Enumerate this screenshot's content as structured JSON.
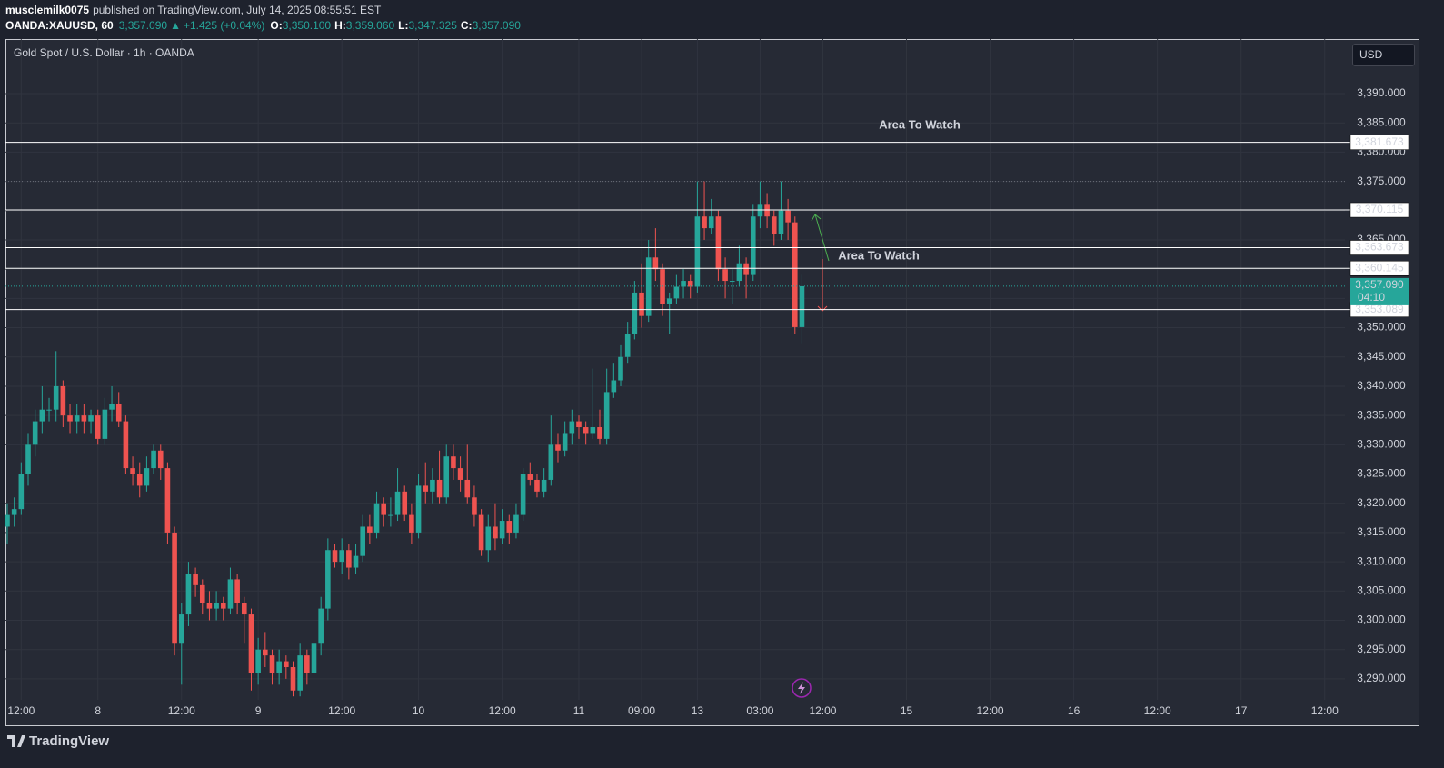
{
  "header": {
    "author": "musclemilk0075",
    "published": "published on TradingView.com, July 14, 2025 08:55:51 EST",
    "symbol": "OANDA:XAUUSD, 60",
    "price": "3,357.090",
    "change_arrow": "▲",
    "change": "+1.425 (+0.04%)",
    "o_label": "O:",
    "o": "3,350.100",
    "h_label": "H:",
    "h": "3,359.060",
    "l_label": "L:",
    "l": "3,347.325",
    "c_label": "C:",
    "c": "3,357.090"
  },
  "chart_data": {
    "type": "candlestick",
    "title": "Gold Spot / U.S. Dollar · 1h · OANDA",
    "currency": "USD",
    "up_color": "#26a69a",
    "down_color": "#ef5350",
    "grid": true,
    "xlim": [
      -0.26,
      191.9
    ],
    "xticks": [
      {
        "value": 2,
        "label": "12:00"
      },
      {
        "value": 13,
        "label": "8"
      },
      {
        "value": 25,
        "label": "12:00"
      },
      {
        "value": 36,
        "label": "9"
      },
      {
        "value": 48,
        "label": "12:00"
      },
      {
        "value": 59,
        "label": "10"
      },
      {
        "value": 71,
        "label": "12:00"
      },
      {
        "value": 82,
        "label": "11"
      },
      {
        "value": 91,
        "label": "09:00"
      },
      {
        "value": 99,
        "label": "13"
      },
      {
        "value": 108,
        "label": "03:00"
      },
      {
        "value": 117,
        "label": "12:00"
      },
      {
        "value": 129,
        "label": "15"
      },
      {
        "value": 141,
        "label": "12:00"
      },
      {
        "value": 153,
        "label": "16"
      },
      {
        "value": 165,
        "label": "12:00"
      },
      {
        "value": 177,
        "label": "17"
      },
      {
        "value": 189,
        "label": "12:00"
      }
    ],
    "ylim": [
      3286.41,
      3399.32
    ],
    "yticks": [
      {
        "value": 3290,
        "label": "3,290.000"
      },
      {
        "value": 3295,
        "label": "3,295.000"
      },
      {
        "value": 3300,
        "label": "3,300.000"
      },
      {
        "value": 3305,
        "label": "3,305.000"
      },
      {
        "value": 3310,
        "label": "3,310.000"
      },
      {
        "value": 3315,
        "label": "3,315.000"
      },
      {
        "value": 3320,
        "label": "3,320.000"
      },
      {
        "value": 3325,
        "label": "3,325.000"
      },
      {
        "value": 3330,
        "label": "3,330.000"
      },
      {
        "value": 3335,
        "label": "3,335.000"
      },
      {
        "value": 3340,
        "label": "3,340.000"
      },
      {
        "value": 3345,
        "label": "3,345.000"
      },
      {
        "value": 3350,
        "label": "3,350.000"
      },
      {
        "value": 3355,
        "label": "3,355.000"
      },
      {
        "value": 3360,
        "label": "3,360.000"
      },
      {
        "value": 3365,
        "label": "3,365.000"
      },
      {
        "value": 3370,
        "label": "3,370.000"
      },
      {
        "value": 3375,
        "label": "3,375.000"
      },
      {
        "value": 3380,
        "label": "3,380.000"
      },
      {
        "value": 3385,
        "label": "3,385.000"
      },
      {
        "value": 3390,
        "label": "3,390.000"
      }
    ],
    "open": [
      3316,
      3318,
      3319,
      3325,
      3330,
      3334,
      3336,
      3336,
      3340,
      3335,
      3334,
      3335,
      3334,
      3335,
      3331,
      3336,
      3337,
      3334,
      3326,
      3325,
      3323,
      3326,
      3329,
      3326,
      3315,
      3296,
      3301,
      3308,
      3306,
      3303,
      3302,
      3303,
      3302,
      3307,
      3303,
      3301,
      3291,
      3295,
      3294,
      3291,
      3293,
      3292,
      3288,
      3294,
      3291,
      3296,
      3302,
      3312,
      3310,
      3312,
      3309,
      3311,
      3316,
      3315,
      3320,
      3318,
      3318,
      3322,
      3318,
      3315,
      3323,
      3322,
      3324,
      3321,
      3328,
      3326,
      3324,
      3321,
      3318,
      3312,
      3316,
      3314,
      3317,
      3315,
      3318,
      3325,
      3324,
      3322,
      3324,
      3330,
      3329,
      3332,
      3334,
      3333,
      3332,
      3333,
      3331,
      3339,
      3341,
      3345,
      3349,
      3356,
      3352,
      3362,
      3360,
      3354,
      3355,
      3357,
      3358,
      3357,
      3369,
      3367,
      3369,
      3360,
      3358,
      3358,
      3361,
      3359,
      3369,
      3371,
      3369,
      3366,
      3370,
      3368,
      3350.1
    ],
    "high": [
      3320,
      3321,
      3327,
      3332,
      3336,
      3340,
      3338,
      3346,
      3341,
      3337,
      3337,
      3337,
      3336,
      3336,
      3338,
      3340,
      3339,
      3335,
      3328,
      3327,
      3328,
      3330,
      3330,
      3327,
      3316,
      3303,
      3310,
      3309,
      3307,
      3305,
      3305,
      3304,
      3309,
      3308,
      3304,
      3302,
      3297,
      3298,
      3295,
      3295,
      3294,
      3293,
      3296,
      3295,
      3298,
      3304,
      3314,
      3313,
      3314,
      3313,
      3313,
      3318,
      3318,
      3322,
      3321,
      3321,
      3326,
      3323,
      3320,
      3325,
      3327,
      3326,
      3329,
      3330,
      3330,
      3328,
      3330,
      3323,
      3319,
      3318,
      3320,
      3319,
      3318,
      3320,
      3326,
      3327,
      3325,
      3326,
      3335,
      3332,
      3334,
      3336,
      3335,
      3334,
      3343,
      3336,
      3343,
      3344,
      3347,
      3351,
      3358,
      3361,
      3365,
      3367,
      3361,
      3356,
      3359,
      3360,
      3359,
      3375,
      3375,
      3372,
      3370,
      3362,
      3360,
      3364,
      3362,
      3371,
      3375,
      3373,
      3370,
      3375,
      3372,
      3369,
      3359.06
    ],
    "low": [
      3313,
      3316,
      3318,
      3323,
      3328,
      3332,
      3334,
      3334,
      3333,
      3332,
      3332,
      3332,
      3332,
      3330,
      3330,
      3334,
      3333,
      3325,
      3323,
      3321,
      3322,
      3325,
      3324,
      3313,
      3294,
      3289,
      3299,
      3304,
      3301,
      3300,
      3300,
      3300,
      3301,
      3301,
      3296,
      3288,
      3289,
      3292,
      3289,
      3289,
      3290,
      3287,
      3287,
      3289,
      3289,
      3294,
      3300,
      3309,
      3308,
      3307,
      3308,
      3310,
      3313,
      3314,
      3316,
      3316,
      3317,
      3317,
      3313,
      3314,
      3320,
      3320,
      3320,
      3320,
      3324,
      3322,
      3320,
      3316,
      3311,
      3310,
      3312,
      3313,
      3313,
      3314,
      3317,
      3323,
      3321,
      3321,
      3323,
      3327,
      3328,
      3330,
      3331,
      3330,
      3331,
      3330,
      3330,
      3338,
      3340,
      3344,
      3348,
      3350,
      3351,
      3358,
      3352,
      3349,
      3354,
      3355,
      3355,
      3356,
      3365,
      3366,
      3358,
      3355,
      3354,
      3357,
      3355,
      3358,
      3367,
      3367,
      3364,
      3365,
      3365,
      3349,
      3347.325
    ],
    "close": [
      3318,
      3319,
      3325,
      3330,
      3334,
      3336,
      3336,
      3340,
      3335,
      3334,
      3335,
      3334,
      3335,
      3331,
      3336,
      3337,
      3334,
      3326,
      3325,
      3323,
      3326,
      3329,
      3326,
      3315,
      3296,
      3301,
      3308,
      3306,
      3303,
      3302,
      3303,
      3302,
      3307,
      3303,
      3301,
      3291,
      3295,
      3294,
      3291,
      3293,
      3292,
      3288,
      3294,
      3291,
      3296,
      3302,
      3312,
      3310,
      3312,
      3309,
      3311,
      3316,
      3315,
      3320,
      3318,
      3318,
      3322,
      3318,
      3315,
      3323,
      3322,
      3324,
      3321,
      3328,
      3326,
      3324,
      3321,
      3318,
      3312,
      3316,
      3314,
      3317,
      3315,
      3318,
      3325,
      3324,
      3322,
      3324,
      3330,
      3329,
      3332,
      3334,
      3333,
      3332,
      3333,
      3331,
      3339,
      3341,
      3345,
      3349,
      3356,
      3352,
      3362,
      3360,
      3354,
      3355,
      3357,
      3358,
      3357,
      3369,
      3367,
      3369,
      3360,
      3358,
      3358,
      3361,
      3359,
      3369,
      3371,
      3369,
      3366,
      3370,
      3368,
      3350.1,
      3357.09
    ],
    "levels": [
      {
        "value": 3381.673,
        "label": "3,381.673"
      },
      {
        "value": 3370.115,
        "label": "3,370.115"
      },
      {
        "value": 3363.673,
        "label": "3,363.673"
      },
      {
        "value": 3360.145,
        "label": "3,360.145"
      },
      {
        "value": 3353.089,
        "label": "3,353.089"
      }
    ],
    "dotted_lines": [
      3375
    ],
    "last_price": {
      "value": 3357.09,
      "label": "3,357.090",
      "countdown": "04:10"
    },
    "annotations": [
      "Area To Watch",
      "Area To Watch"
    ]
  },
  "footer": {
    "brand": "TradingView"
  }
}
